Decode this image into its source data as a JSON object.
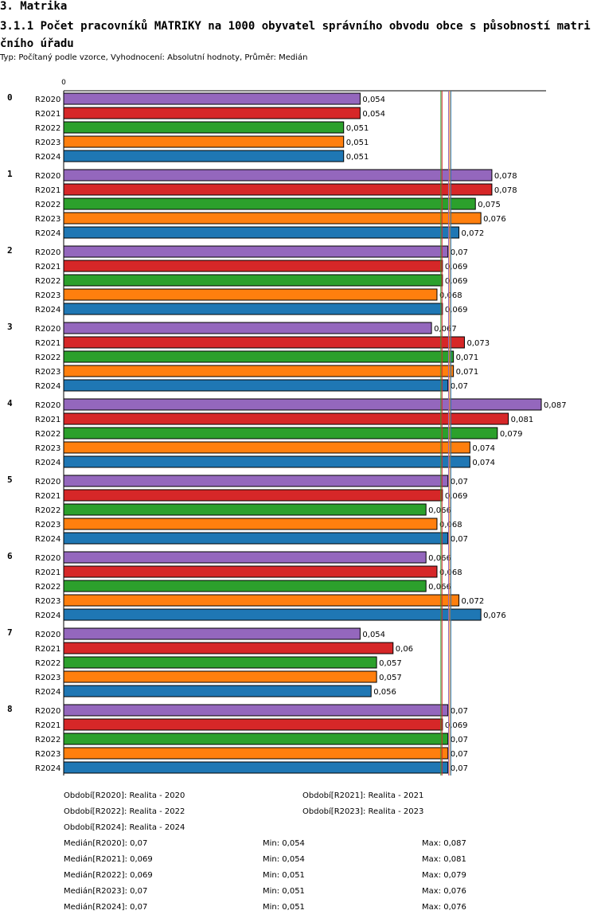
{
  "header": {
    "section": "3. Matrika",
    "title": "3.1.1 Počet pracovníků MATRIKY na 1000 obyvatel správního obvodu obce s působností matričního úřadu",
    "subtitle": "Typ: Počítaný podle vzorce, Vyhodnocení: Absolutní hodnoty, Průměr: Medián"
  },
  "chart_data": {
    "type": "bar",
    "orientation": "horizontal",
    "axis_zero_label": "0",
    "xlim": [
      0,
      0.087
    ],
    "groups": [
      "0",
      "1",
      "2",
      "3",
      "4",
      "5",
      "6",
      "7",
      "8"
    ],
    "series": [
      {
        "name": "R2020",
        "color": "#9467bd",
        "values": [
          0.054,
          0.078,
          0.07,
          0.067,
          0.087,
          0.07,
          0.066,
          0.054,
          0.07
        ],
        "labels": [
          "0,054",
          "0,078",
          "0,07",
          "0,067",
          "0,087",
          "0,07",
          "0,066",
          "0,054",
          "0,07"
        ]
      },
      {
        "name": "R2021",
        "color": "#d62728",
        "values": [
          0.054,
          0.078,
          0.069,
          0.073,
          0.081,
          0.069,
          0.068,
          0.06,
          0.069
        ],
        "labels": [
          "0,054",
          "0,078",
          "0,069",
          "0,073",
          "0,081",
          "0,069",
          "0,068",
          "0,06",
          "0,069"
        ]
      },
      {
        "name": "R2022",
        "color": "#2ca02c",
        "values": [
          0.051,
          0.075,
          0.069,
          0.071,
          0.079,
          0.066,
          0.066,
          0.057,
          0.07
        ],
        "labels": [
          "0,051",
          "0,075",
          "0,069",
          "0,071",
          "0,079",
          "0,066",
          "0,066",
          "0,057",
          "0,07"
        ]
      },
      {
        "name": "R2023",
        "color": "#ff7f0e",
        "values": [
          0.051,
          0.076,
          0.068,
          0.071,
          0.074,
          0.068,
          0.072,
          0.057,
          0.07
        ],
        "labels": [
          "0,051",
          "0,076",
          "0,068",
          "0,071",
          "0,074",
          "0,068",
          "0,072",
          "0,057",
          "0,07"
        ]
      },
      {
        "name": "R2024",
        "color": "#1f77b4",
        "values": [
          0.051,
          0.072,
          0.069,
          0.07,
          0.074,
          0.07,
          0.076,
          0.056,
          0.07
        ],
        "labels": [
          "0,051",
          "0,072",
          "0,069",
          "0,07",
          "0,074",
          "0,07",
          "0,076",
          "0,056",
          "0,07"
        ]
      }
    ],
    "median_lines": [
      {
        "series": "R2022",
        "value": 0.069
      },
      {
        "series": "R2021",
        "value": 0.069
      },
      {
        "series": "R2020",
        "value": 0.07
      },
      {
        "series": "R2023",
        "value": 0.07
      },
      {
        "series": "R2024",
        "value": 0.07
      }
    ]
  },
  "legend": {
    "periods": [
      "Období[R2020]: Realita - 2020",
      "Období[R2021]: Realita - 2021",
      "Období[R2022]: Realita - 2022",
      "Období[R2023]: Realita - 2023",
      "Období[R2024]: Realita - 2024"
    ],
    "stats": [
      {
        "median": "Medián[R2020]: 0,07",
        "min": "Min: 0,054",
        "max": "Max: 0,087"
      },
      {
        "median": "Medián[R2021]: 0,069",
        "min": "Min: 0,054",
        "max": "Max: 0,081"
      },
      {
        "median": "Medián[R2022]: 0,069",
        "min": "Min: 0,051",
        "max": "Max: 0,079"
      },
      {
        "median": "Medián[R2023]: 0,07",
        "min": "Min: 0,051",
        "max": "Max: 0,076"
      },
      {
        "median": "Medián[R2024]: 0,07",
        "min": "Min: 0,051",
        "max": "Max: 0,076"
      }
    ]
  }
}
